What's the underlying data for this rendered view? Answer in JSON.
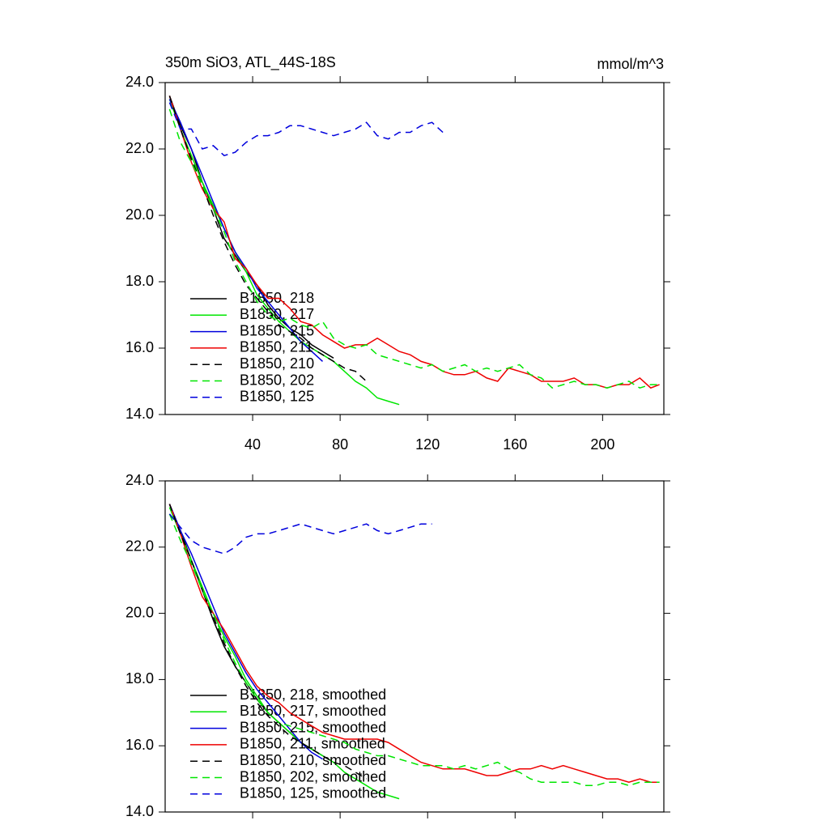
{
  "chart_data": [
    {
      "type": "line",
      "title": "350m SiO3, ATL_44S-18S",
      "units": "mmol/m^3",
      "x": [
        2,
        7,
        12,
        17,
        22,
        27,
        32,
        37,
        42,
        47,
        52,
        57,
        62,
        67,
        72,
        77,
        82,
        87,
        92,
        97,
        102,
        107,
        112,
        117,
        122,
        127,
        132,
        137,
        142,
        147,
        152,
        157,
        162,
        167,
        172,
        177,
        182,
        187,
        192,
        197,
        202,
        207,
        212,
        217,
        222,
        226
      ],
      "xlim": [
        0,
        228
      ],
      "xticks": [
        40,
        80,
        120,
        160,
        200
      ],
      "ylim": [
        14,
        24
      ],
      "yticks": [
        {
          "value": 14,
          "label": "14.0"
        },
        {
          "value": 16,
          "label": "16.0"
        },
        {
          "value": 18,
          "label": "18.0"
        },
        {
          "value": 20,
          "label": "20.0"
        },
        {
          "value": 22,
          "label": "22.0"
        },
        {
          "value": 24,
          "label": "24.0"
        }
      ],
      "series": [
        {
          "name": "B1850, 218",
          "color": "#000000",
          "dashed": false,
          "values": [
            23.6,
            22.7,
            22.0,
            21.0,
            20.2,
            19.3,
            18.8,
            18.3,
            17.9,
            17.3,
            16.9,
            16.6,
            16.4,
            16.1,
            15.9,
            15.7,
            null,
            null,
            null,
            null,
            null,
            null,
            null,
            null,
            null,
            null,
            null,
            null,
            null,
            null,
            null,
            null,
            null,
            null,
            null,
            null,
            null,
            null,
            null,
            null,
            null,
            null,
            null,
            null,
            null,
            null
          ]
        },
        {
          "name": "B1850, 217",
          "color": "#00e600",
          "dashed": false,
          "values": [
            23.5,
            22.6,
            21.8,
            21.0,
            20.3,
            19.6,
            18.9,
            18.3,
            17.6,
            17.2,
            16.8,
            16.5,
            16.2,
            16.0,
            15.8,
            15.6,
            15.3,
            15.0,
            14.8,
            14.5,
            14.4,
            14.3,
            null,
            null,
            null,
            null,
            null,
            null,
            null,
            null,
            null,
            null,
            null,
            null,
            null,
            null,
            null,
            null,
            null,
            null,
            null,
            null,
            null,
            null,
            null,
            null
          ]
        },
        {
          "name": "B1850, 215",
          "color": "#0000dd",
          "dashed": false,
          "values": [
            23.5,
            22.8,
            22.0,
            21.2,
            20.4,
            19.6,
            18.9,
            18.4,
            17.8,
            17.4,
            17.0,
            16.6,
            16.2,
            15.9,
            15.6,
            null,
            null,
            null,
            null,
            null,
            null,
            null,
            null,
            null,
            null,
            null,
            null,
            null,
            null,
            null,
            null,
            null,
            null,
            null,
            null,
            null,
            null,
            null,
            null,
            null,
            null,
            null,
            null,
            null,
            null,
            null
          ]
        },
        {
          "name": "B1850, 211",
          "color": "#ee0000",
          "dashed": false,
          "values": [
            23.6,
            22.6,
            21.6,
            20.8,
            20.2,
            19.8,
            18.7,
            18.4,
            17.9,
            17.5,
            17.5,
            17.2,
            16.8,
            16.7,
            16.4,
            16.2,
            16.0,
            16.1,
            16.1,
            16.3,
            16.1,
            15.9,
            15.8,
            15.6,
            15.5,
            15.3,
            15.2,
            15.2,
            15.3,
            15.1,
            15.0,
            15.4,
            15.3,
            15.2,
            15.0,
            15.0,
            15.0,
            15.1,
            14.9,
            14.9,
            14.8,
            14.9,
            14.9,
            15.1,
            14.8,
            14.9
          ]
        },
        {
          "name": "B1850, 210",
          "color": "#000000",
          "dashed": true,
          "values": [
            23.6,
            22.6,
            21.7,
            20.9,
            20.0,
            19.2,
            18.5,
            17.9,
            17.5,
            17.1,
            16.7,
            16.5,
            16.3,
            16.0,
            15.8,
            15.6,
            15.4,
            15.3,
            15.0,
            null,
            null,
            null,
            null,
            null,
            null,
            null,
            null,
            null,
            null,
            null,
            null,
            null,
            null,
            null,
            null,
            null,
            null,
            null,
            null,
            null,
            null,
            null,
            null,
            null,
            null,
            null
          ]
        },
        {
          "name": "B1850, 202",
          "color": "#00e600",
          "dashed": true,
          "values": [
            23.2,
            22.2,
            21.6,
            20.9,
            20.2,
            19.5,
            18.6,
            18.0,
            17.4,
            17.0,
            16.8,
            16.9,
            16.7,
            16.6,
            16.8,
            16.3,
            16.1,
            16.0,
            16.1,
            15.8,
            15.7,
            15.6,
            15.5,
            15.4,
            15.5,
            15.3,
            15.4,
            15.5,
            15.3,
            15.4,
            15.3,
            15.4,
            15.5,
            15.2,
            15.1,
            14.8,
            14.9,
            15.0,
            14.9,
            14.9,
            14.8,
            14.9,
            15.0,
            14.8,
            14.9,
            14.9
          ]
        },
        {
          "name": "B1850, 125",
          "color": "#0000dd",
          "dashed": true,
          "values": [
            23.4,
            22.6,
            22.6,
            22.0,
            22.1,
            21.8,
            21.9,
            22.2,
            22.4,
            22.4,
            22.5,
            22.7,
            22.7,
            22.6,
            22.5,
            22.4,
            22.5,
            22.6,
            22.8,
            22.4,
            22.3,
            22.5,
            22.5,
            22.7,
            22.8,
            22.5,
            null,
            null,
            null,
            null,
            null,
            null,
            null,
            null,
            null,
            null,
            null,
            null,
            null,
            null,
            null,
            null,
            null,
            null,
            null,
            null
          ]
        }
      ]
    },
    {
      "type": "line",
      "x": [
        2,
        7,
        12,
        17,
        22,
        27,
        32,
        37,
        42,
        47,
        52,
        57,
        62,
        67,
        72,
        77,
        82,
        87,
        92,
        97,
        102,
        107,
        112,
        117,
        122,
        127,
        132,
        137,
        142,
        147,
        152,
        157,
        162,
        167,
        172,
        177,
        182,
        187,
        192,
        197,
        202,
        207,
        212,
        217,
        222,
        226
      ],
      "xlim": [
        0,
        228
      ],
      "xticks": [
        40,
        80,
        120,
        160,
        200
      ],
      "ylim": [
        14,
        24
      ],
      "yticks": [
        {
          "value": 14,
          "label": "14.0"
        },
        {
          "value": 16,
          "label": "16.0"
        },
        {
          "value": 18,
          "label": "18.0"
        },
        {
          "value": 20,
          "label": "20.0"
        },
        {
          "value": 22,
          "label": "22.0"
        },
        {
          "value": 24,
          "label": "24.0"
        }
      ],
      "series": [
        {
          "name": "B1850, 218, smoothed",
          "color": "#000000",
          "dashed": false,
          "values": [
            23.3,
            22.5,
            21.6,
            20.7,
            19.8,
            19.0,
            18.4,
            17.9,
            17.4,
            17.0,
            16.7,
            16.4,
            16.1,
            15.9,
            15.7,
            null,
            null,
            null,
            null,
            null,
            null,
            null,
            null,
            null,
            null,
            null,
            null,
            null,
            null,
            null,
            null,
            null,
            null,
            null,
            null,
            null,
            null,
            null,
            null,
            null,
            null,
            null,
            null,
            null,
            null,
            null
          ]
        },
        {
          "name": "B1850, 217, smoothed",
          "color": "#00e600",
          "dashed": false,
          "values": [
            23.2,
            22.4,
            21.6,
            20.8,
            20.0,
            19.3,
            18.7,
            18.0,
            17.5,
            17.0,
            16.7,
            16.4,
            16.1,
            15.9,
            15.7,
            15.5,
            15.2,
            15.0,
            14.8,
            14.6,
            14.5,
            14.4,
            null,
            null,
            null,
            null,
            null,
            null,
            null,
            null,
            null,
            null,
            null,
            null,
            null,
            null,
            null,
            null,
            null,
            null,
            null,
            null,
            null,
            null,
            null,
            null
          ]
        },
        {
          "name": "B1850, 215, smoothed",
          "color": "#0000dd",
          "dashed": false,
          "values": [
            23.3,
            22.5,
            21.8,
            21.0,
            20.2,
            19.4,
            18.8,
            18.2,
            17.7,
            17.3,
            16.9,
            16.5,
            16.1,
            15.8,
            15.6,
            null,
            null,
            null,
            null,
            null,
            null,
            null,
            null,
            null,
            null,
            null,
            null,
            null,
            null,
            null,
            null,
            null,
            null,
            null,
            null,
            null,
            null,
            null,
            null,
            null,
            null,
            null,
            null,
            null,
            null,
            null
          ]
        },
        {
          "name": "B1850, 211, smoothed",
          "color": "#ee0000",
          "dashed": false,
          "values": [
            23.3,
            22.4,
            21.4,
            20.5,
            20.0,
            19.5,
            18.9,
            18.3,
            17.8,
            17.5,
            17.3,
            17.0,
            16.8,
            16.6,
            16.4,
            16.3,
            16.2,
            16.2,
            16.2,
            16.2,
            16.1,
            15.9,
            15.7,
            15.5,
            15.4,
            15.3,
            15.3,
            15.3,
            15.2,
            15.1,
            15.1,
            15.2,
            15.3,
            15.3,
            15.4,
            15.3,
            15.4,
            15.3,
            15.2,
            15.1,
            15.0,
            15.0,
            14.9,
            15.0,
            14.9,
            14.9
          ]
        },
        {
          "name": "B1850, 210, smoothed",
          "color": "#000000",
          "dashed": true,
          "values": [
            23.3,
            22.4,
            21.6,
            20.7,
            19.9,
            19.1,
            18.4,
            17.8,
            17.3,
            16.9,
            16.6,
            16.3,
            16.1,
            15.9,
            15.7,
            15.5,
            15.4,
            15.2,
            15.0,
            null,
            null,
            null,
            null,
            null,
            null,
            null,
            null,
            null,
            null,
            null,
            null,
            null,
            null,
            null,
            null,
            null,
            null,
            null,
            null,
            null,
            null,
            null,
            null,
            null,
            null,
            null
          ]
        },
        {
          "name": "B1850, 202, smoothed",
          "color": "#00e600",
          "dashed": true,
          "values": [
            23.0,
            22.2,
            21.5,
            20.7,
            20.0,
            19.2,
            18.5,
            17.9,
            17.4,
            17.0,
            16.7,
            16.6,
            16.5,
            16.4,
            16.3,
            16.2,
            16.1,
            15.9,
            15.8,
            15.7,
            15.7,
            15.6,
            15.5,
            15.4,
            15.4,
            15.4,
            15.3,
            15.4,
            15.3,
            15.4,
            15.5,
            15.3,
            15.2,
            15.0,
            14.9,
            14.9,
            14.9,
            14.9,
            14.8,
            14.8,
            14.9,
            14.9,
            14.8,
            14.9,
            14.9,
            14.9
          ]
        },
        {
          "name": "B1850, 125, smoothed",
          "color": "#0000dd",
          "dashed": true,
          "values": [
            23.0,
            22.6,
            22.2,
            22.0,
            21.9,
            21.8,
            22.0,
            22.3,
            22.4,
            22.4,
            22.5,
            22.6,
            22.7,
            22.6,
            22.5,
            22.4,
            22.5,
            22.6,
            22.7,
            22.5,
            22.4,
            22.5,
            22.6,
            22.7,
            22.7,
            null,
            null,
            null,
            null,
            null,
            null,
            null,
            null,
            null,
            null,
            null,
            null,
            null,
            null,
            null,
            null,
            null,
            null,
            null,
            null,
            null
          ]
        }
      ]
    }
  ]
}
